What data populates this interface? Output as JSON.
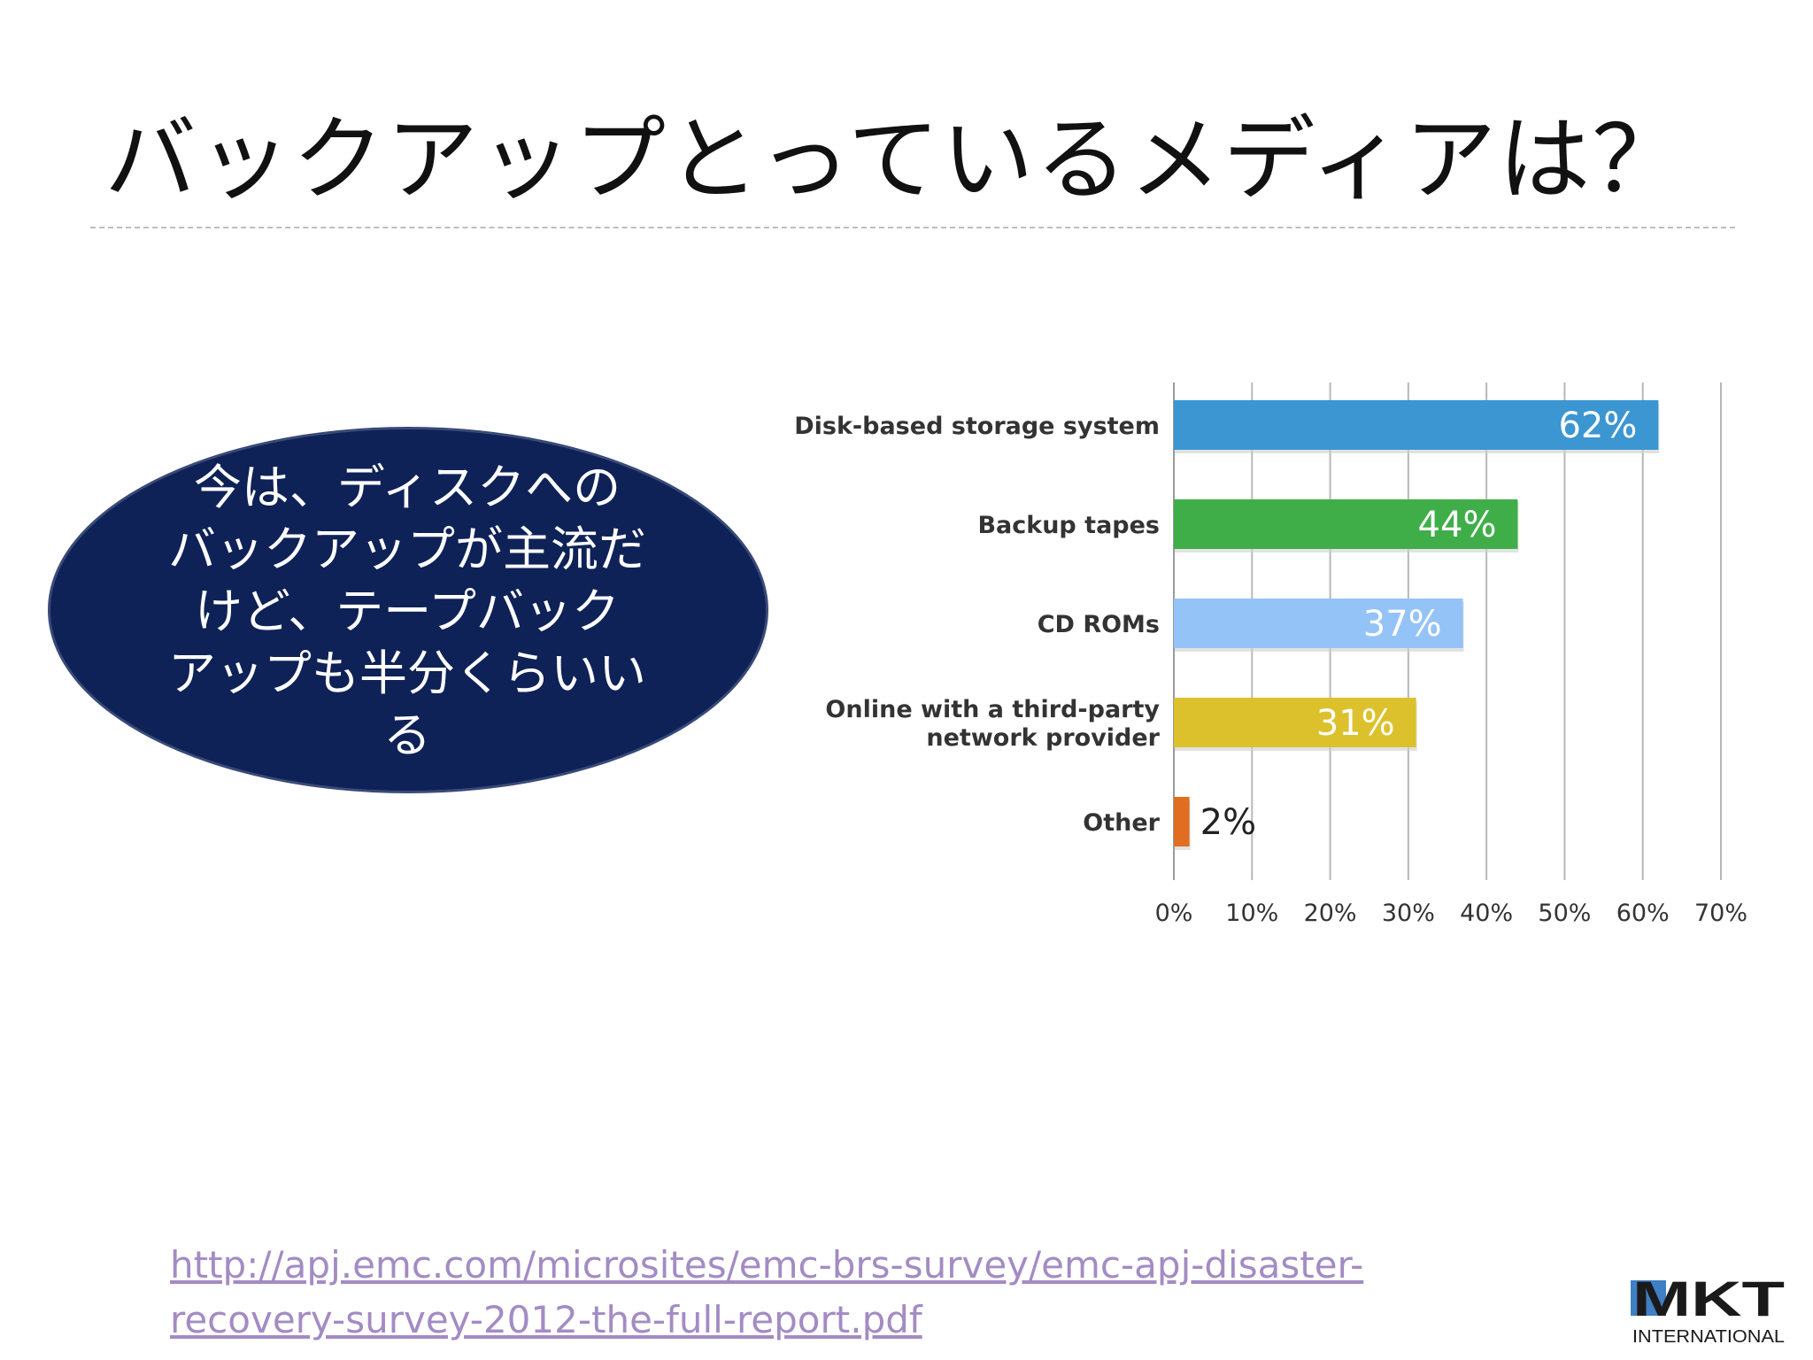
{
  "slide": {
    "title": "バックアップとっているメディアは？",
    "callout_lines": [
      "今は、ディスクへの",
      "バックアップが主流だ",
      "けど、テープバック",
      "アップも半分くらいい",
      "る"
    ],
    "url_lines": [
      "http://apj.emc.com/microsites/emc-brs-survey/emc-apj-disaster-",
      "recovery-survey-2012-the-full-report.pdf"
    ],
    "logo_mark": "MKT",
    "logo_sub": "INTERNATIONAL"
  },
  "chart_data": {
    "type": "bar",
    "orientation": "horizontal",
    "categories": [
      "Disk-based storage system",
      "Backup tapes",
      "CD ROMs",
      "Online with a third-party network provider",
      "Other"
    ],
    "category_label_lines": [
      [
        "Disk-based storage system"
      ],
      [
        "Backup tapes"
      ],
      [
        "CD ROMs"
      ],
      [
        "Online with a third-party",
        "network provider"
      ],
      [
        "Other"
      ]
    ],
    "values": [
      62,
      44,
      37,
      31,
      2
    ],
    "value_labels": [
      "62%",
      "44%",
      "37%",
      "31%",
      "2%"
    ],
    "colors": [
      "#3b96d2",
      "#3fae49",
      "#94c3f7",
      "#dcc12c",
      "#e16d21"
    ],
    "xlim": [
      0,
      70
    ],
    "x_ticks": [
      0,
      10,
      20,
      30,
      40,
      50,
      60,
      70
    ],
    "x_tick_labels": [
      "0%",
      "10%",
      "20%",
      "30%",
      "40%",
      "50%",
      "60%",
      "70%"
    ],
    "grid": true,
    "legend": "none"
  }
}
